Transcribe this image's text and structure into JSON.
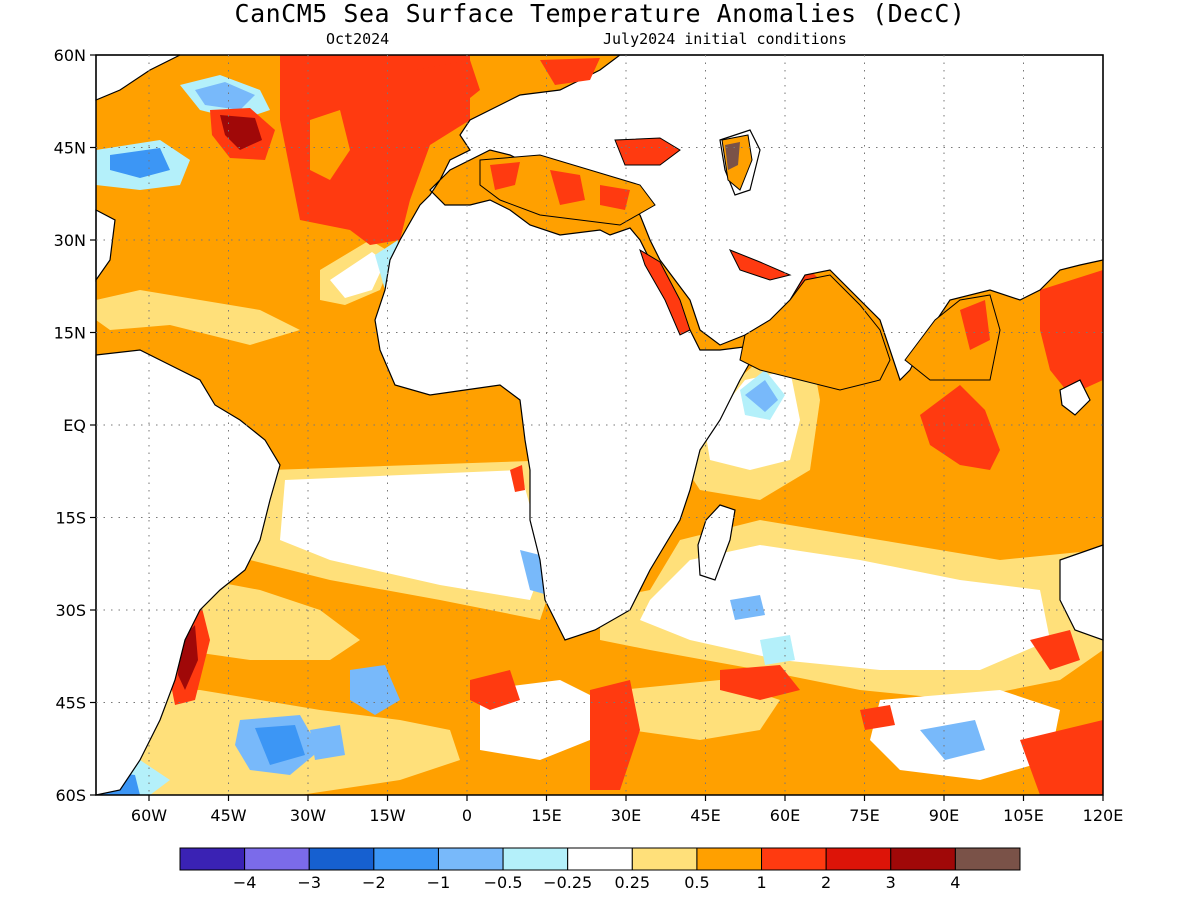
{
  "title": "CanCM5 Sea Surface Temperature Anomalies (DecC)",
  "valid_month": "Oct2024",
  "initial_conditions": "July2024 initial conditions",
  "lat_labels": [
    "60N",
    "45N",
    "30N",
    "15N",
    "EQ",
    "15S",
    "30S",
    "45S",
    "60S"
  ],
  "lon_labels": [
    "60W",
    "45W",
    "30W",
    "15W",
    "0",
    "15E",
    "30E",
    "45E",
    "60E",
    "75E",
    "90E",
    "105E",
    "120E"
  ],
  "colorbar": {
    "colors": [
      "#3a22b4",
      "#7b6bea",
      "#1660d0",
      "#3c96f5",
      "#78b9fa",
      "#b4f0fa",
      "#ffffff",
      "#ffe07a",
      "#ffa000",
      "#ff3a10",
      "#dd1408",
      "#a00808",
      "#7a5248"
    ],
    "labels": [
      "-4",
      "-3",
      "-2",
      "-1",
      "-0.5",
      "-0.25",
      "0.25",
      "0.5",
      "1",
      "2",
      "3",
      "4"
    ]
  },
  "legend_color_meaning": {
    "white": "-0.25 to 0.25",
    "light_yellow": "0.25 to 0.5",
    "orange": "0.5 to 1",
    "red": "1 to 2",
    "dark_red": "2 to 3"
  },
  "map_extent": {
    "lon": [
      -70,
      120
    ],
    "lat": [
      -60,
      60
    ]
  }
}
